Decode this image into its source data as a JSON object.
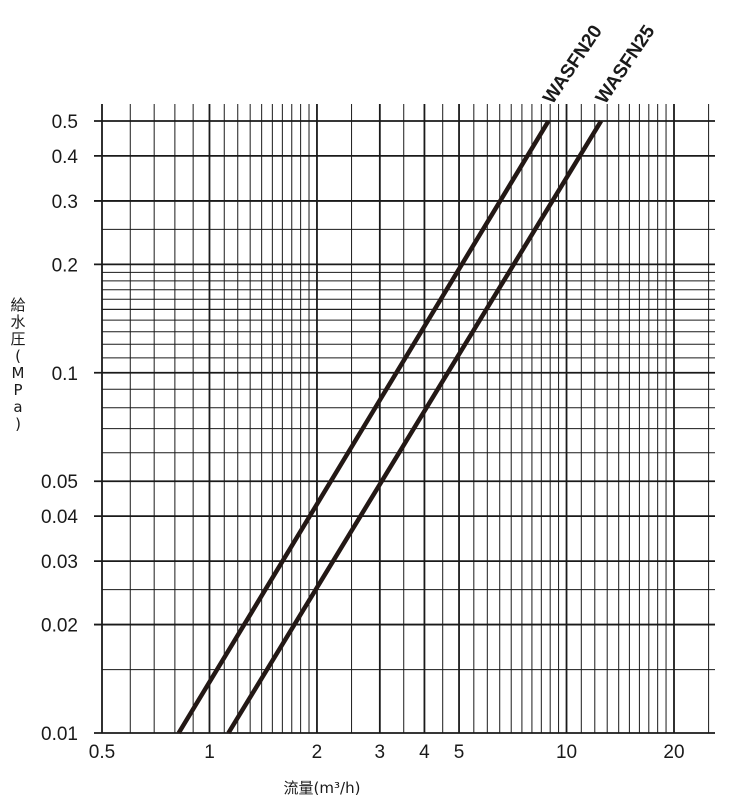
{
  "chart_data": {
    "type": "line",
    "x_scale": "log",
    "y_scale": "log",
    "xlim": [
      0.5,
      25
    ],
    "ylim": [
      0.01,
      0.55
    ],
    "grid": true,
    "xlabel": "流量(m³/h)",
    "ylabel": "給水圧(MPa)",
    "x_ticks": [
      {
        "value": 0.5,
        "label": "0.5"
      },
      {
        "value": 1,
        "label": "1"
      },
      {
        "value": 2,
        "label": "2"
      },
      {
        "value": 3,
        "label": "3"
      },
      {
        "value": 4,
        "label": "4"
      },
      {
        "value": 5,
        "label": "5"
      },
      {
        "value": 10,
        "label": "10"
      },
      {
        "value": 20,
        "label": "20"
      }
    ],
    "y_ticks": [
      {
        "value": 0.01,
        "label": "0.01"
      },
      {
        "value": 0.02,
        "label": "0.02"
      },
      {
        "value": 0.03,
        "label": "0.03"
      },
      {
        "value": 0.04,
        "label": "0.04"
      },
      {
        "value": 0.05,
        "label": "0.05"
      },
      {
        "value": 0.1,
        "label": "0.1"
      },
      {
        "value": 0.2,
        "label": "0.2"
      },
      {
        "value": 0.3,
        "label": "0.3"
      },
      {
        "value": 0.4,
        "label": "0.4"
      },
      {
        "value": 0.5,
        "label": "0.5"
      }
    ],
    "series": [
      {
        "name": "WASFN20",
        "points": [
          [
            0.82,
            0.01
          ],
          [
            8.9,
            0.5
          ]
        ]
      },
      {
        "name": "WASFN25",
        "points": [
          [
            1.13,
            0.01
          ],
          [
            12.5,
            0.5
          ]
        ]
      }
    ]
  }
}
